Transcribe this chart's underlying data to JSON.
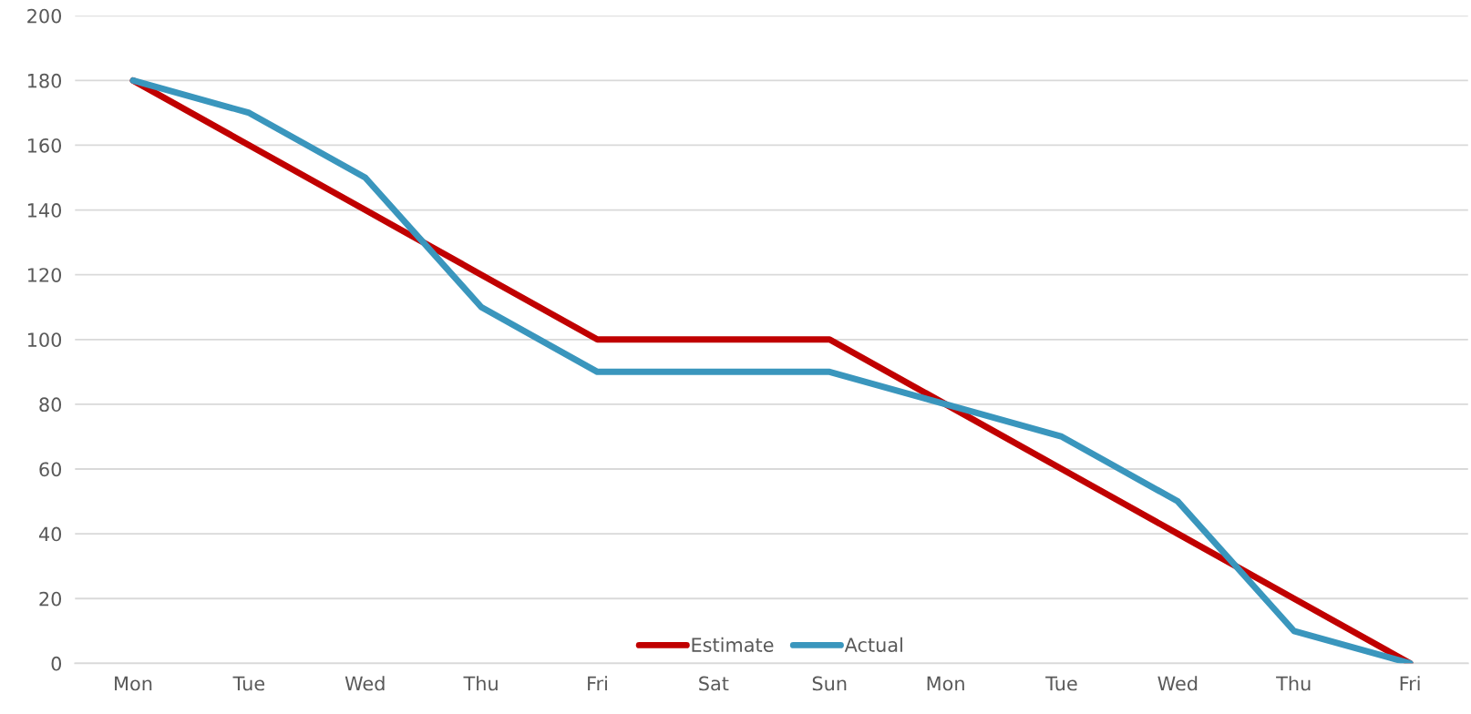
{
  "chart_data": {
    "type": "line",
    "categories": [
      "Mon",
      "Tue",
      "Wed",
      "Thu",
      "Fri",
      "Sat",
      "Sun",
      "Mon",
      "Tue",
      "Wed",
      "Thu",
      "Fri"
    ],
    "series": [
      {
        "name": "Estimate",
        "color": "#c00000",
        "values": [
          180,
          160,
          140,
          120,
          100,
          100,
          100,
          80,
          60,
          40,
          20,
          0
        ]
      },
      {
        "name": "Actual",
        "color": "#3a96bd",
        "values": [
          180,
          170,
          150,
          110,
          90,
          90,
          90,
          80,
          70,
          50,
          10,
          0
        ]
      }
    ],
    "ylim": [
      0,
      200
    ],
    "yticks": [
      0,
      20,
      40,
      60,
      80,
      100,
      120,
      140,
      160,
      180,
      200
    ],
    "grid": "y",
    "legend": "bottom",
    "marker": "none",
    "line_style": "solid"
  }
}
